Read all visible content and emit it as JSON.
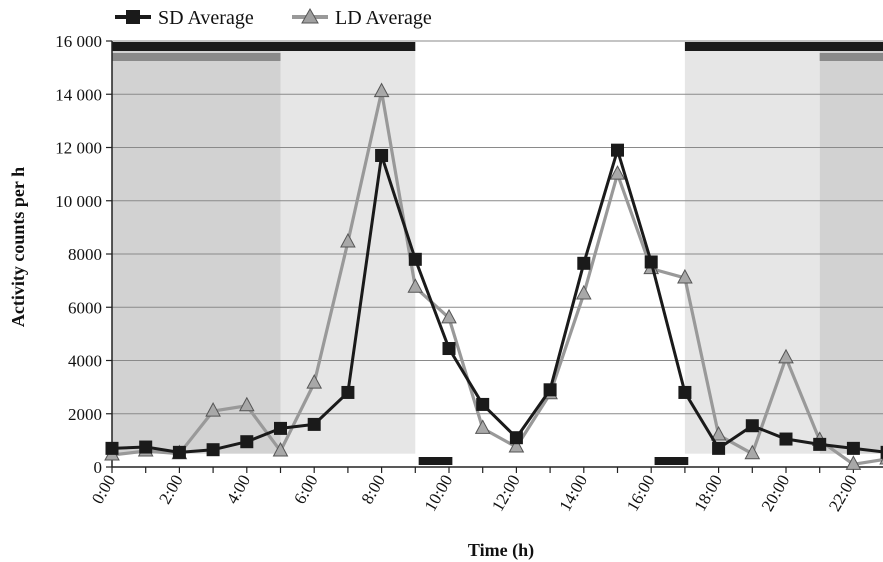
{
  "chart_data": {
    "type": "line",
    "xlabel": "Time (h)",
    "ylabel": "Activity counts per h",
    "ylim": [
      0,
      16000
    ],
    "xlim": [
      0,
      23
    ],
    "y_ticks": [
      "0",
      "2000",
      "4000",
      "6000",
      "8000",
      "10 000",
      "12 000",
      "14 000",
      "16 000"
    ],
    "y_tick_values": [
      0,
      2000,
      4000,
      6000,
      8000,
      10000,
      12000,
      14000,
      16000
    ],
    "x_ticks": [
      "0:00",
      "2:00",
      "4:00",
      "6:00",
      "8:00",
      "10:00",
      "12:00",
      "14:00",
      "16:00",
      "18:00",
      "20:00",
      "22:00"
    ],
    "x_tick_values": [
      0,
      2,
      4,
      6,
      8,
      10,
      12,
      14,
      16,
      18,
      20,
      22
    ],
    "grid": "horizontal",
    "legend_position": "top-left",
    "x": [
      0,
      1,
      2,
      3,
      4,
      5,
      6,
      7,
      8,
      9,
      10,
      11,
      12,
      13,
      14,
      15,
      16,
      17,
      18,
      19,
      20,
      21,
      22,
      23
    ],
    "series": [
      {
        "name": "SD Average",
        "color": "#1a1a1a",
        "marker": "square",
        "values": [
          700,
          750,
          550,
          650,
          950,
          1450,
          1600,
          2800,
          11700,
          7800,
          4450,
          2350,
          1100,
          2900,
          7650,
          11900,
          7700,
          2800,
          700,
          1550,
          1050,
          850,
          700,
          550
        ]
      },
      {
        "name": "LD Average",
        "color": "#999999",
        "marker": "triangle",
        "values": [
          450,
          600,
          500,
          2100,
          2300,
          600,
          3150,
          8450,
          14100,
          6750,
          5600,
          1450,
          750,
          2750,
          6500,
          11000,
          7450,
          7100,
          1200,
          500,
          4100,
          1000,
          100,
          300
        ]
      }
    ],
    "shaded_regions": [
      {
        "start": 0,
        "end": 5,
        "shade": "dark",
        "color": "#d2d2d2"
      },
      {
        "start": 5,
        "end": 9,
        "shade": "light",
        "color": "#e6e6e6"
      },
      {
        "start": 17,
        "end": 21,
        "shade": "light",
        "color": "#e6e6e6"
      },
      {
        "start": 21,
        "end": 23.2,
        "shade": "dark",
        "color": "#d2d2d2"
      }
    ],
    "top_black_bars": [
      {
        "start": 0,
        "end": 9
      },
      {
        "start": 17,
        "end": 23.2
      }
    ],
    "top_gray_bars": [
      {
        "start": 0,
        "end": 5
      },
      {
        "start": 21,
        "end": 23.2
      }
    ],
    "bottom_black_bars": [
      {
        "start": 9.1,
        "end": 10.1
      },
      {
        "start": 16.1,
        "end": 17.1
      }
    ]
  }
}
